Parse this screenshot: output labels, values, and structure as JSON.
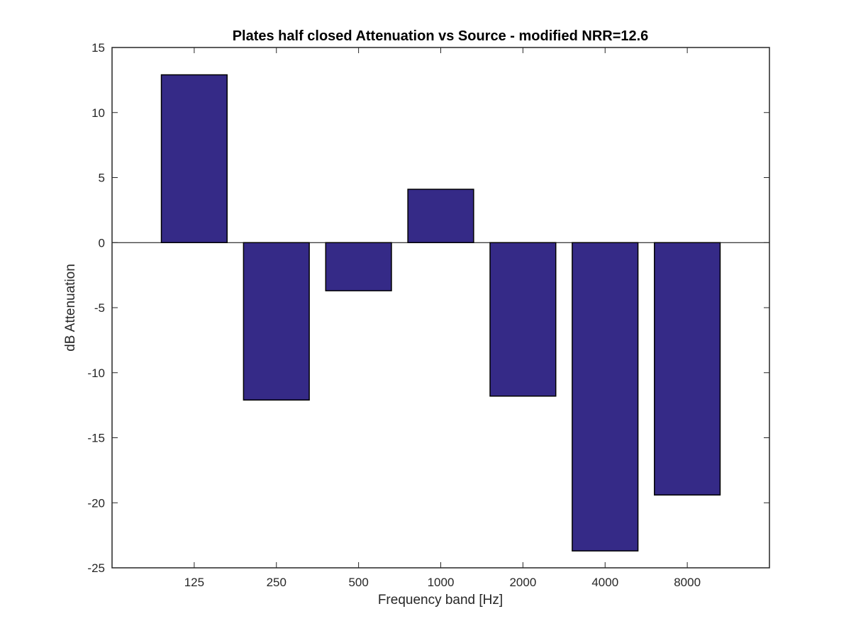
{
  "chart_data": {
    "type": "bar",
    "title": "Plates half closed Attenuation vs Source - modified NRR=12.6",
    "xlabel": "Frequency band [Hz]",
    "ylabel": "dB Attenuation",
    "categories": [
      "125",
      "250",
      "500",
      "1000",
      "2000",
      "4000",
      "8000"
    ],
    "values": [
      12.9,
      -12.1,
      -3.7,
      4.1,
      -11.8,
      -23.7,
      -19.4
    ],
    "ylim": [
      -25,
      15
    ],
    "yticks": [
      15,
      10,
      5,
      0,
      -5,
      -10,
      -15,
      -20,
      -25
    ],
    "ytick_labels": [
      "15",
      "10",
      "5",
      "0",
      "-5",
      "-10",
      "-15",
      "-20",
      "-25"
    ],
    "xlim": [
      0,
      8
    ],
    "grid": false,
    "legend": false,
    "bar_color": "#352a87",
    "edge_color": "#000000"
  }
}
